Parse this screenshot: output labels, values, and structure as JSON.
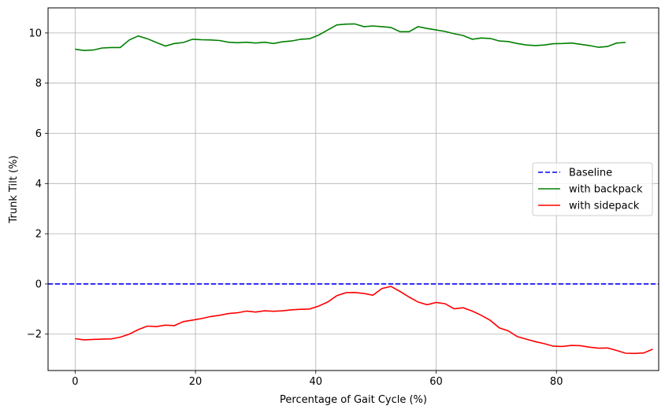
{
  "chart_data": {
    "type": "line",
    "xlabel": "Percentage of Gait Cycle (%)",
    "ylabel": "Trunk Tilt (%)",
    "xlim": [
      -4.5,
      97
    ],
    "ylim": [
      -3.45,
      11
    ],
    "xticks": [
      0,
      20,
      40,
      60,
      80
    ],
    "yticks": [
      -2,
      0,
      2,
      4,
      6,
      8,
      10
    ],
    "ytick_labels": [
      "−2",
      "0",
      "2",
      "4",
      "6",
      "8",
      "10"
    ],
    "grid": true,
    "legend_position": "center-right",
    "series": [
      {
        "name": "Baseline",
        "color": "#0000ff",
        "style": "dashed",
        "horizontal_line": true,
        "y": 0
      },
      {
        "name": "with backpack",
        "color": "#008000",
        "style": "solid",
        "points": [
          [
            0,
            9.35
          ],
          [
            1.5,
            9.3
          ],
          [
            3,
            9.32
          ],
          [
            4.5,
            9.4
          ],
          [
            6,
            9.42
          ],
          [
            7.5,
            9.42
          ],
          [
            9,
            9.72
          ],
          [
            10.5,
            9.88
          ],
          [
            12,
            9.77
          ],
          [
            13.5,
            9.62
          ],
          [
            15,
            9.48
          ],
          [
            16.5,
            9.58
          ],
          [
            18,
            9.62
          ],
          [
            19.5,
            9.75
          ],
          [
            21,
            9.73
          ],
          [
            22.5,
            9.72
          ],
          [
            24,
            9.7
          ],
          [
            25.5,
            9.63
          ],
          [
            27,
            9.61
          ],
          [
            28.5,
            9.63
          ],
          [
            30,
            9.6
          ],
          [
            31.5,
            9.63
          ],
          [
            33,
            9.58
          ],
          [
            34.5,
            9.65
          ],
          [
            36,
            9.68
          ],
          [
            37.5,
            9.75
          ],
          [
            39,
            9.77
          ],
          [
            40.5,
            9.92
          ],
          [
            42,
            10.12
          ],
          [
            43.5,
            10.32
          ],
          [
            45,
            10.35
          ],
          [
            46.5,
            10.36
          ],
          [
            48,
            10.25
          ],
          [
            49.5,
            10.28
          ],
          [
            51,
            10.25
          ],
          [
            52.5,
            10.22
          ],
          [
            54,
            10.05
          ],
          [
            55.5,
            10.05
          ],
          [
            57,
            10.25
          ],
          [
            58.5,
            10.18
          ],
          [
            60,
            10.12
          ],
          [
            61.5,
            10.06
          ],
          [
            63,
            9.97
          ],
          [
            64.5,
            9.9
          ],
          [
            66,
            9.75
          ],
          [
            67.5,
            9.8
          ],
          [
            69,
            9.78
          ],
          [
            70.5,
            9.68
          ],
          [
            72,
            9.66
          ],
          [
            73.5,
            9.58
          ],
          [
            75,
            9.52
          ],
          [
            76.5,
            9.5
          ],
          [
            78,
            9.52
          ],
          [
            79.5,
            9.57
          ],
          [
            81,
            9.58
          ],
          [
            82.5,
            9.6
          ],
          [
            84,
            9.55
          ],
          [
            85.5,
            9.5
          ],
          [
            87,
            9.43
          ],
          [
            88.5,
            9.46
          ],
          [
            90,
            9.6
          ],
          [
            91.5,
            9.62
          ]
        ]
      },
      {
        "name": "with sidepack",
        "color": "#ff0000",
        "style": "solid",
        "points": [
          [
            0,
            -2.18
          ],
          [
            1.5,
            -2.23
          ],
          [
            3,
            -2.21
          ],
          [
            4.5,
            -2.2
          ],
          [
            6,
            -2.19
          ],
          [
            7.5,
            -2.12
          ],
          [
            9,
            -2.0
          ],
          [
            10.5,
            -1.82
          ],
          [
            12,
            -1.68
          ],
          [
            13.5,
            -1.7
          ],
          [
            15,
            -1.64
          ],
          [
            16.5,
            -1.66
          ],
          [
            18,
            -1.5
          ],
          [
            19.5,
            -1.44
          ],
          [
            21,
            -1.38
          ],
          [
            22.5,
            -1.3
          ],
          [
            24,
            -1.25
          ],
          [
            25.5,
            -1.18
          ],
          [
            27,
            -1.15
          ],
          [
            28.5,
            -1.08
          ],
          [
            30,
            -1.12
          ],
          [
            31.5,
            -1.07
          ],
          [
            33,
            -1.09
          ],
          [
            34.5,
            -1.07
          ],
          [
            36,
            -1.03
          ],
          [
            37.5,
            -1.01
          ],
          [
            39,
            -1.0
          ],
          [
            40.5,
            -0.88
          ],
          [
            42,
            -0.72
          ],
          [
            43.5,
            -0.47
          ],
          [
            45,
            -0.35
          ],
          [
            46.5,
            -0.34
          ],
          [
            48,
            -0.38
          ],
          [
            49.5,
            -0.45
          ],
          [
            51,
            -0.18
          ],
          [
            52.5,
            -0.1
          ],
          [
            54,
            -0.3
          ],
          [
            55.5,
            -0.52
          ],
          [
            57,
            -0.72
          ],
          [
            58.5,
            -0.83
          ],
          [
            60,
            -0.74
          ],
          [
            61.5,
            -0.79
          ],
          [
            63,
            -0.99
          ],
          [
            64.5,
            -0.95
          ],
          [
            66,
            -1.08
          ],
          [
            67.5,
            -1.25
          ],
          [
            69,
            -1.45
          ],
          [
            70.5,
            -1.75
          ],
          [
            72,
            -1.87
          ],
          [
            73.5,
            -2.1
          ],
          [
            75,
            -2.2
          ],
          [
            76.5,
            -2.3
          ],
          [
            78,
            -2.38
          ],
          [
            79.5,
            -2.48
          ],
          [
            81,
            -2.49
          ],
          [
            82.5,
            -2.45
          ],
          [
            84,
            -2.46
          ],
          [
            85.5,
            -2.52
          ],
          [
            87,
            -2.56
          ],
          [
            88.5,
            -2.55
          ],
          [
            90,
            -2.65
          ],
          [
            91.5,
            -2.76
          ],
          [
            93,
            -2.77
          ],
          [
            94.5,
            -2.75
          ],
          [
            96,
            -2.6
          ]
        ]
      }
    ]
  }
}
